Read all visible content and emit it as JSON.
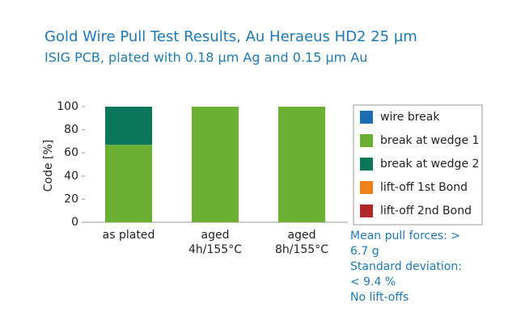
{
  "chart_data": {
    "type": "stacked_bar",
    "title": "Gold Wire Pull Test Results, Au Heraeus HD2 25 µm",
    "subtitle": "ISIG PCB, plated with 0.18 µm Ag and 0.15 µm Au",
    "y_label": "Code [%]",
    "categories": [
      "as plated",
      "aged\n4h/155°C",
      "aged\n8h/155°C"
    ],
    "series": [
      {
        "name": "wire break",
        "color": "#1c6db4",
        "values": [
          0,
          0,
          0
        ]
      },
      {
        "name": "break at wedge 1",
        "color": "#6cb033",
        "values": [
          67,
          100,
          100
        ]
      },
      {
        "name": "break at wedge 2",
        "color": "#0b775a",
        "values": [
          33,
          0,
          0
        ]
      },
      {
        "name": "lift-off 1st Bond",
        "color": "#f08019",
        "values": [
          0,
          0,
          0
        ]
      },
      {
        "name": "lift-off 2nd Bond",
        "color": "#b1262b",
        "values": [
          0,
          0,
          0
        ]
      }
    ],
    "ylim": [
      0,
      100
    ],
    "yticks": [
      0,
      20,
      40,
      60,
      80,
      100
    ],
    "grid": false,
    "legend": "right",
    "notes": [
      "Mean pull forces: >",
      "6.7 g",
      "Standard deviation:",
      "< 9.4 %",
      "No lift-offs"
    ]
  }
}
